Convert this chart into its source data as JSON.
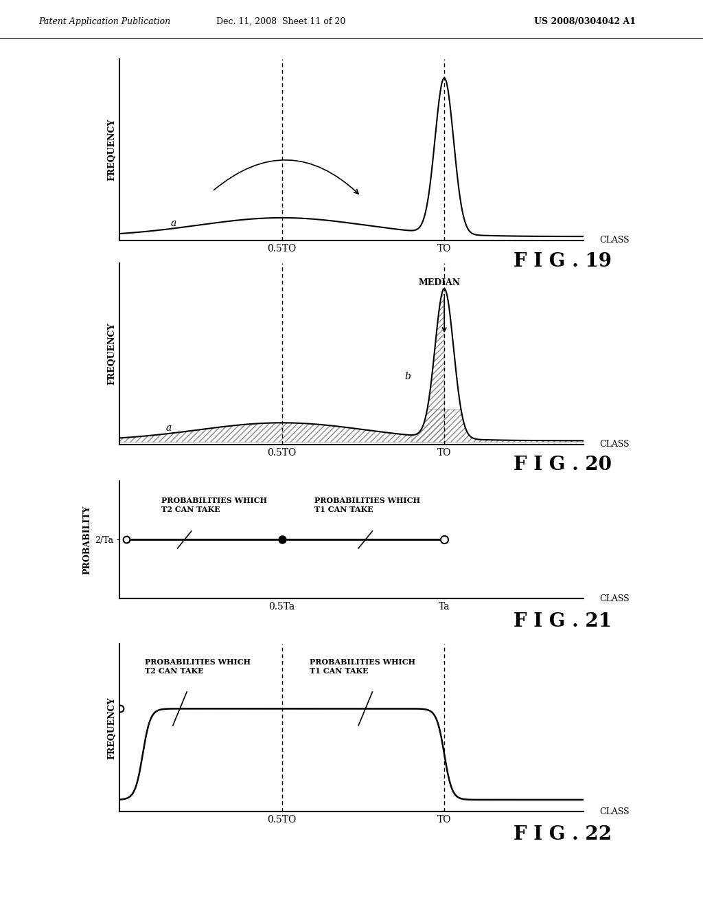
{
  "header_left": "Patent Application Publication",
  "header_mid": "Dec. 11, 2008  Sheet 11 of 20",
  "header_right": "US 2008/0304042 A1",
  "fig19_title": "F I G . 19",
  "fig20_title": "F I G . 20",
  "fig21_title": "F I G . 21",
  "fig22_title": "F I G . 22",
  "bg_color": "#ffffff",
  "line_color": "#000000"
}
